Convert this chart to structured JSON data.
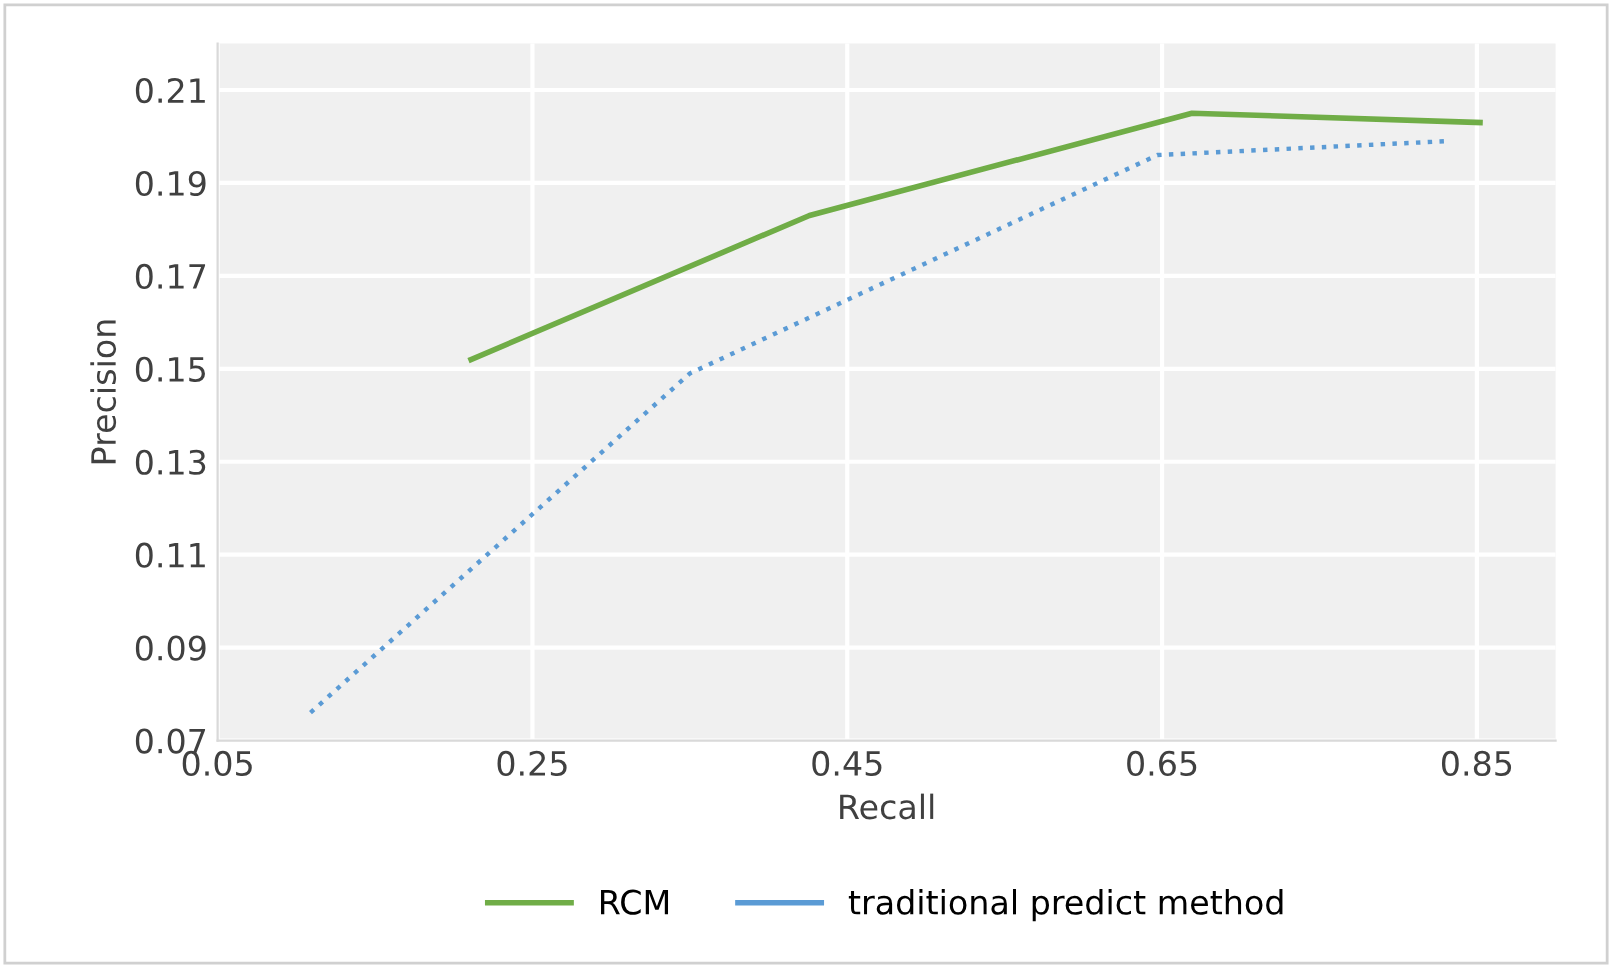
{
  "chart_data": {
    "type": "line",
    "xlabel": "Recall",
    "ylabel": "Precision",
    "xlim": [
      0.05,
      0.9
    ],
    "xticks": [
      {
        "value": 0.05,
        "label": "0.05"
      },
      {
        "value": 0.25,
        "label": "0.25"
      },
      {
        "value": 0.45,
        "label": "0.45"
      },
      {
        "value": 0.65,
        "label": "0.65"
      },
      {
        "value": 0.85,
        "label": "0.85"
      }
    ],
    "ylim": [
      0.07,
      0.22
    ],
    "yticks": [
      {
        "value": 0.07,
        "label": "0.07"
      },
      {
        "value": 0.09,
        "label": "0.09"
      },
      {
        "value": 0.11,
        "label": "0.11"
      },
      {
        "value": 0.13,
        "label": "0.13"
      },
      {
        "value": 0.15,
        "label": "0.15"
      },
      {
        "value": 0.17,
        "label": "0.17"
      },
      {
        "value": 0.19,
        "label": "0.19"
      },
      {
        "value": 0.21,
        "label": "0.21"
      }
    ],
    "grid": true,
    "legend": "bottom",
    "marker": "none",
    "series": [
      {
        "name": "RCM",
        "color": "#70ad47",
        "line_style": "solid",
        "x": [
          0.211,
          0.426,
          0.669,
          0.852
        ],
        "values": [
          0.152,
          0.183,
          0.205,
          0.203
        ]
      },
      {
        "name": "traditional predict method",
        "color": "#5b9bd5",
        "line_style": "dotted",
        "x": [
          0.109,
          0.35,
          0.647,
          0.831
        ],
        "values": [
          0.076,
          0.149,
          0.196,
          0.199
        ]
      }
    ]
  }
}
